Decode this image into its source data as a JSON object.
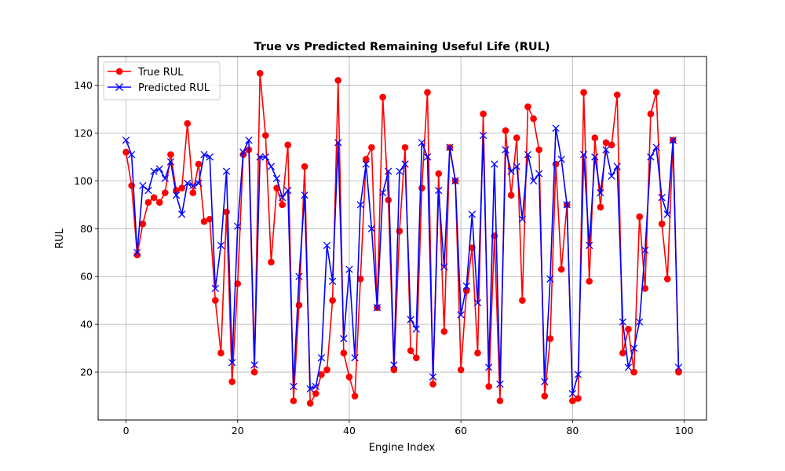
{
  "chart_data": {
    "type": "line",
    "title": "True vs Predicted Remaining Useful Life (RUL)",
    "xlabel": "Engine Index",
    "ylabel": "RUL",
    "xlim": [
      -5,
      104
    ],
    "ylim": [
      0,
      152
    ],
    "xticks": [
      0,
      20,
      40,
      60,
      80,
      100
    ],
    "yticks": [
      20,
      40,
      60,
      80,
      100,
      120,
      140
    ],
    "grid": true,
    "legend_position": "top-left",
    "x": [
      0,
      1,
      2,
      3,
      4,
      5,
      6,
      7,
      8,
      9,
      10,
      11,
      12,
      13,
      14,
      15,
      16,
      17,
      18,
      19,
      20,
      21,
      22,
      23,
      24,
      25,
      26,
      27,
      28,
      29,
      30,
      31,
      32,
      33,
      34,
      35,
      36,
      37,
      38,
      39,
      40,
      41,
      42,
      43,
      44,
      45,
      46,
      47,
      48,
      49,
      50,
      51,
      52,
      53,
      54,
      55,
      56,
      57,
      58,
      59,
      60,
      61,
      62,
      63,
      64,
      65,
      66,
      67,
      68,
      69,
      70,
      71,
      72,
      73,
      74,
      75,
      76,
      77,
      78,
      79,
      80,
      81,
      82,
      83,
      84,
      85,
      86,
      87,
      88,
      89,
      90,
      91,
      92,
      93,
      94,
      95,
      96,
      97,
      98,
      99
    ],
    "series": [
      {
        "name": "True RUL",
        "color": "#ff0000",
        "marker": "circle",
        "values": [
          112,
          98,
          69,
          82,
          91,
          93,
          91,
          95,
          111,
          96,
          97,
          124,
          95,
          107,
          83,
          84,
          50,
          28,
          87,
          16,
          57,
          111,
          113,
          20,
          145,
          119,
          66,
          97,
          90,
          115,
          8,
          48,
          106,
          7,
          11,
          19,
          21,
          50,
          142,
          28,
          18,
          10,
          59,
          109,
          114,
          47,
          135,
          92,
          21,
          79,
          114,
          29,
          26,
          97,
          137,
          15,
          103,
          37,
          114,
          100,
          21,
          54,
          72,
          28,
          128,
          14,
          77,
          8,
          121,
          94,
          118,
          50,
          131,
          126,
          113,
          10,
          34,
          107,
          63,
          90,
          8,
          9,
          137,
          58,
          118,
          89,
          116,
          115,
          136,
          28,
          38,
          20,
          85,
          55,
          128,
          137,
          82,
          59,
          117,
          20
        ]
      },
      {
        "name": "Predicted RUL",
        "color": "#0000ff",
        "marker": "x",
        "values": [
          117,
          111,
          70,
          98,
          96,
          104,
          105,
          101,
          108,
          94,
          86,
          99,
          98,
          99,
          111,
          110,
          55,
          73,
          104,
          24,
          81,
          112,
          117,
          23,
          110,
          110,
          106,
          101,
          93,
          96,
          14,
          60,
          94,
          13,
          14,
          26,
          73,
          58,
          116,
          34,
          63,
          26,
          90,
          107,
          80,
          47,
          95,
          104,
          23,
          104,
          107,
          42,
          38,
          116,
          110,
          18,
          96,
          64,
          114,
          100,
          44,
          56,
          86,
          49,
          119,
          22,
          107,
          15,
          113,
          104,
          106,
          84,
          111,
          100,
          103,
          16,
          59,
          122,
          109,
          90,
          11,
          19,
          111,
          73,
          110,
          95,
          113,
          102,
          106,
          41,
          22,
          30,
          41,
          71,
          110,
          114,
          93,
          86,
          117,
          22
        ]
      }
    ]
  }
}
